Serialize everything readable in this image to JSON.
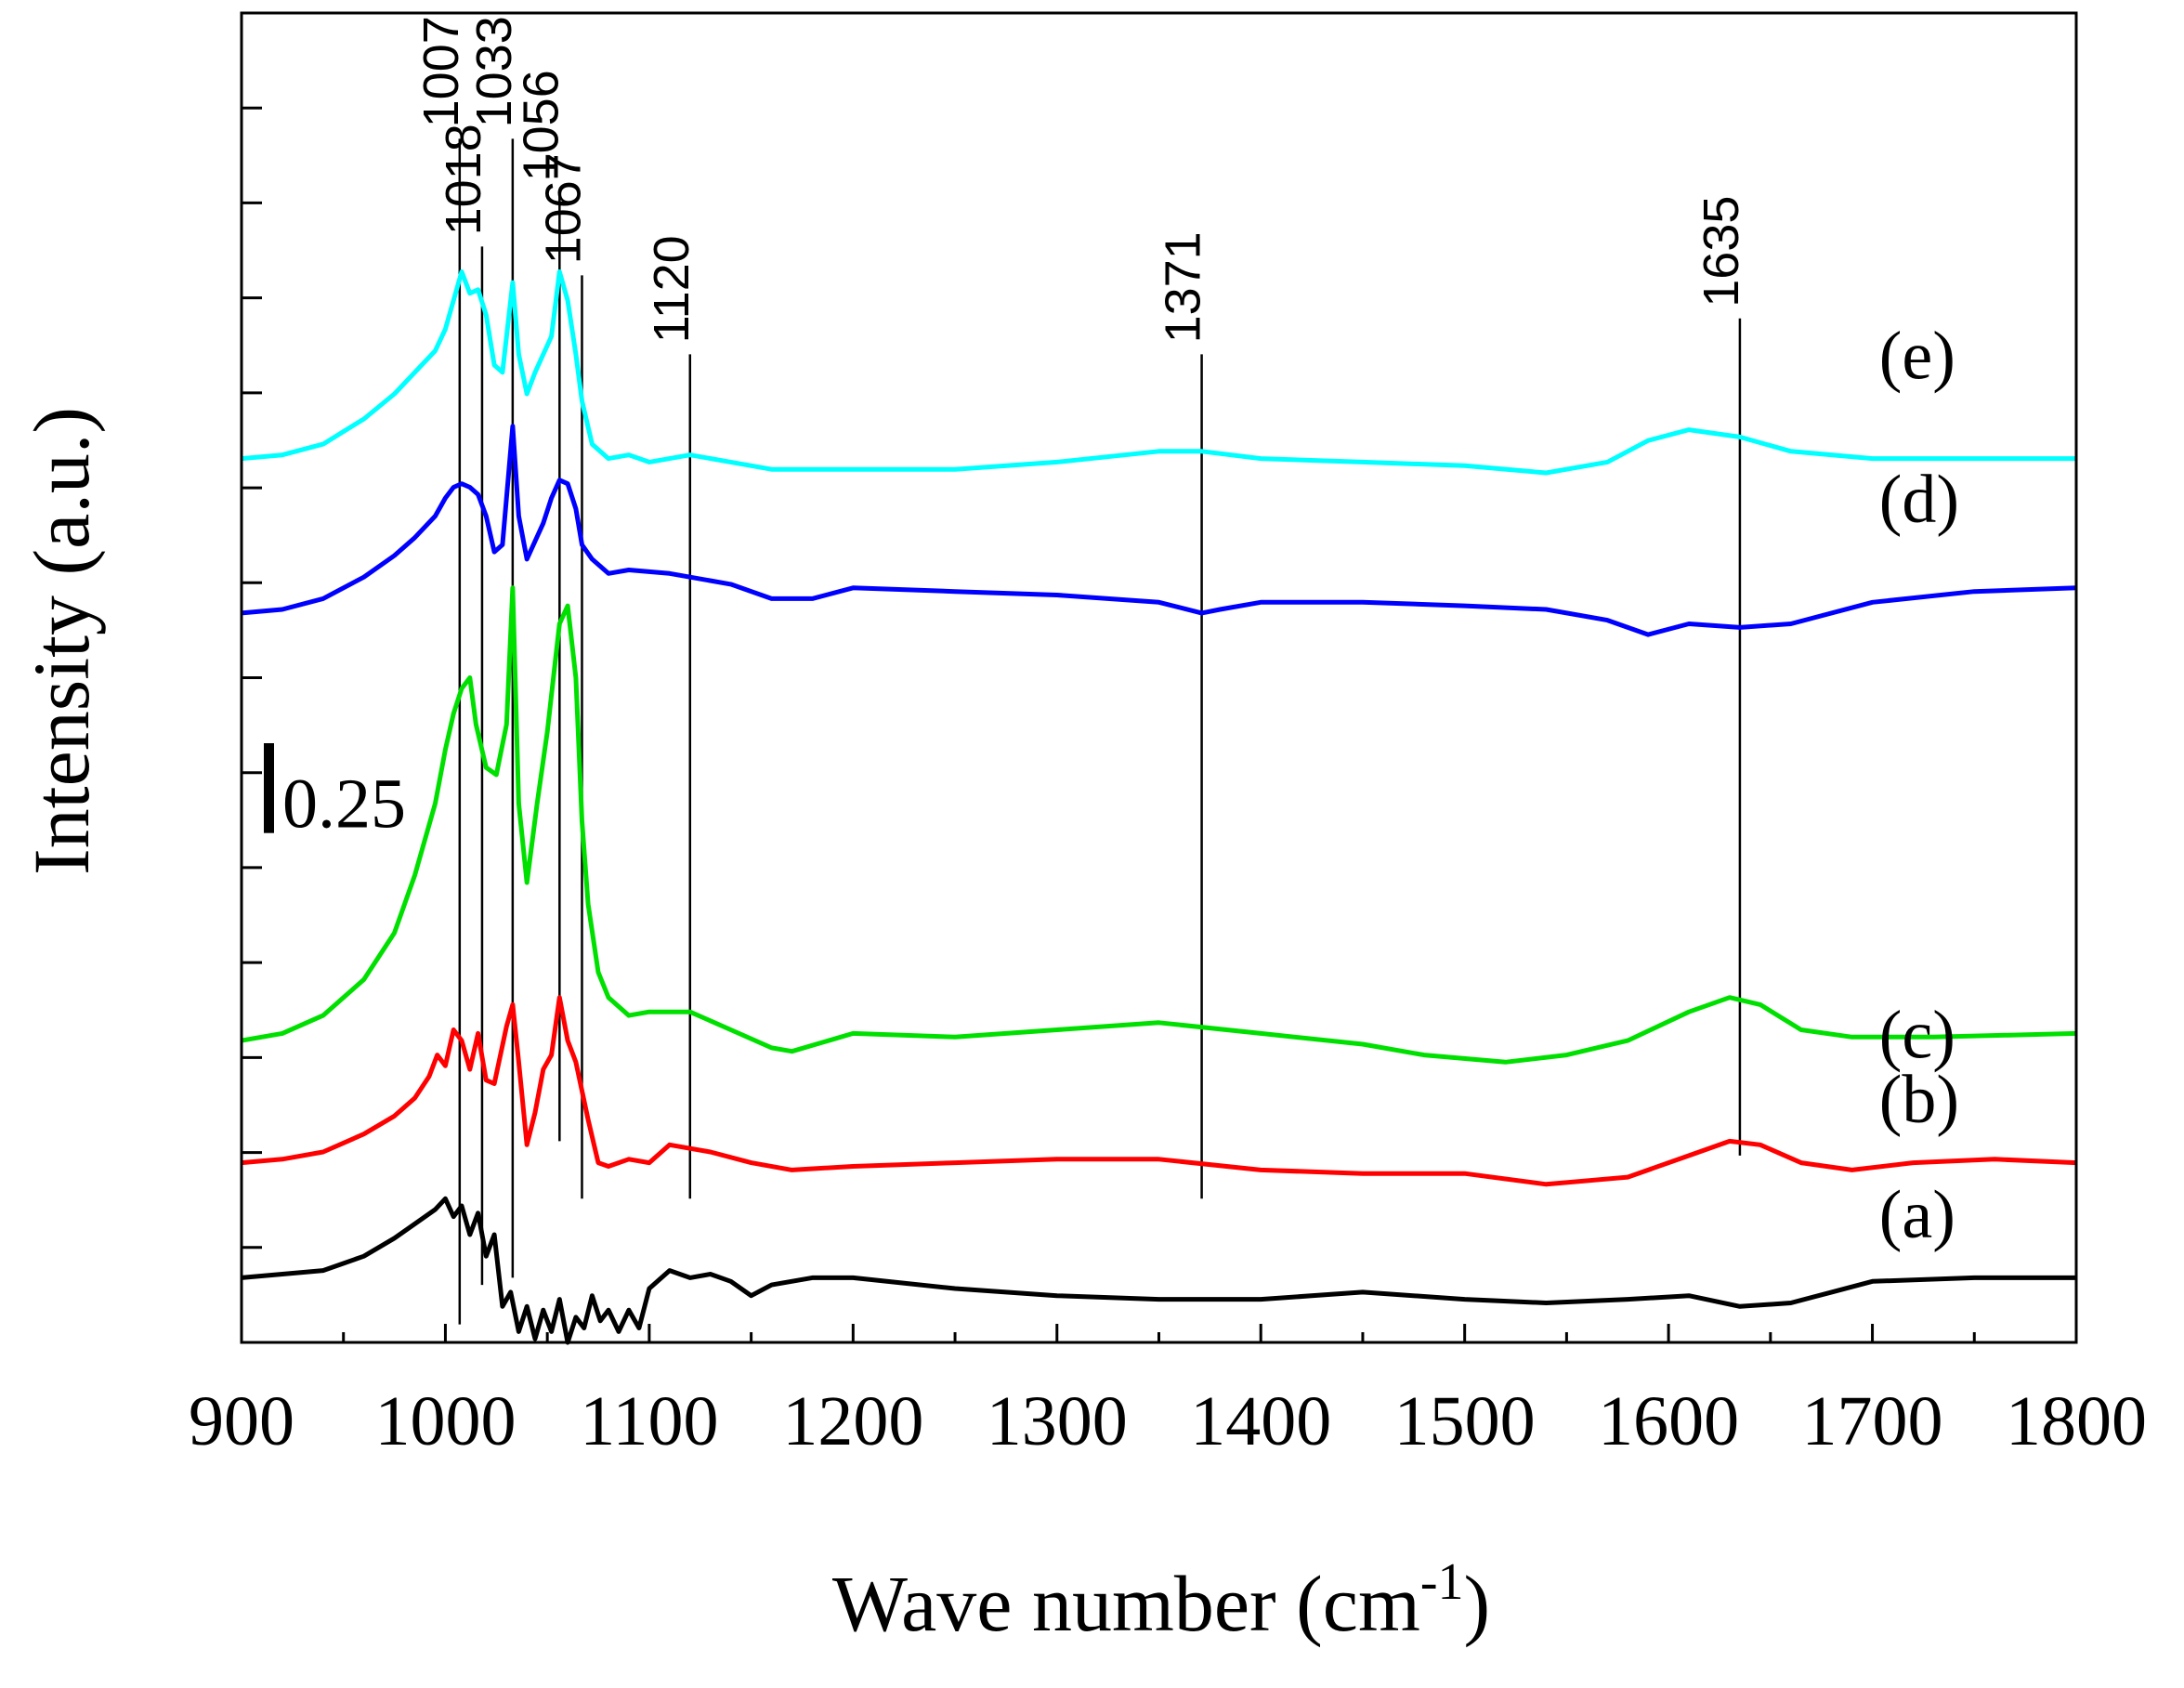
{
  "chart_data": {
    "type": "line",
    "title": "",
    "xlabel_main": "Wave number (cm",
    "xlabel_sup": "-1",
    "xlabel_close": ")",
    "ylabel": "Intensity (a.u.)",
    "xlim": [
      900,
      1800
    ],
    "ylim": [
      0,
      3.7
    ],
    "x_ticks": [
      900,
      1000,
      1100,
      1200,
      1300,
      1400,
      1500,
      1600,
      1700,
      1800
    ],
    "y_tick_count": 14,
    "scale_bar_label": "0.25",
    "scale_bar_value": 0.25,
    "peak_markers": [
      {
        "x": 1007,
        "label": "1007",
        "ybottom": 0.05,
        "ytop": 3.35
      },
      {
        "x": 1018,
        "label": "1018",
        "ybottom": 0.16,
        "ytop": 3.05
      },
      {
        "x": 1033,
        "label": "1033",
        "ybottom": 0.18,
        "ytop": 3.35
      },
      {
        "x": 1056,
        "label": "1056",
        "ybottom": 0.56,
        "ytop": 3.2
      },
      {
        "x": 1067,
        "label": "1067",
        "ybottom": 0.4,
        "ytop": 2.97
      },
      {
        "x": 1120,
        "label": "1120",
        "ybottom": 0.4,
        "ytop": 2.75
      },
      {
        "x": 1371,
        "label": "1371",
        "ybottom": 0.4,
        "ytop": 2.75
      },
      {
        "x": 1635,
        "label": "1635",
        "ybottom": 0.52,
        "ytop": 2.85
      }
    ],
    "series": [
      {
        "name": "(a)",
        "color": "#000000",
        "label_at": [
          1660,
          0.36
        ],
        "points": [
          [
            900,
            0.18
          ],
          [
            920,
            0.19
          ],
          [
            940,
            0.2
          ],
          [
            960,
            0.24
          ],
          [
            975,
            0.29
          ],
          [
            985,
            0.33
          ],
          [
            995,
            0.37
          ],
          [
            1000,
            0.4
          ],
          [
            1004,
            0.35
          ],
          [
            1008,
            0.38
          ],
          [
            1012,
            0.3
          ],
          [
            1016,
            0.36
          ],
          [
            1020,
            0.24
          ],
          [
            1024,
            0.3
          ],
          [
            1028,
            0.1
          ],
          [
            1032,
            0.14
          ],
          [
            1036,
            0.03
          ],
          [
            1040,
            0.1
          ],
          [
            1044,
            0.01
          ],
          [
            1048,
            0.09
          ],
          [
            1052,
            0.03
          ],
          [
            1056,
            0.12
          ],
          [
            1060,
            0.0
          ],
          [
            1064,
            0.07
          ],
          [
            1068,
            0.04
          ],
          [
            1072,
            0.13
          ],
          [
            1076,
            0.06
          ],
          [
            1080,
            0.09
          ],
          [
            1085,
            0.03
          ],
          [
            1090,
            0.09
          ],
          [
            1095,
            0.04
          ],
          [
            1100,
            0.15
          ],
          [
            1110,
            0.2
          ],
          [
            1120,
            0.18
          ],
          [
            1130,
            0.19
          ],
          [
            1140,
            0.17
          ],
          [
            1150,
            0.13
          ],
          [
            1160,
            0.16
          ],
          [
            1180,
            0.18
          ],
          [
            1200,
            0.18
          ],
          [
            1250,
            0.15
          ],
          [
            1300,
            0.13
          ],
          [
            1350,
            0.12
          ],
          [
            1400,
            0.12
          ],
          [
            1450,
            0.14
          ],
          [
            1500,
            0.12
          ],
          [
            1540,
            0.11
          ],
          [
            1580,
            0.12
          ],
          [
            1610,
            0.13
          ],
          [
            1635,
            0.1
          ],
          [
            1660,
            0.11
          ],
          [
            1680,
            0.14
          ],
          [
            1700,
            0.17
          ],
          [
            1750,
            0.18
          ],
          [
            1800,
            0.18
          ]
        ]
      },
      {
        "name": "(b)",
        "color": "#ff0000",
        "label_at": [
          1660,
          0.68
        ],
        "points": [
          [
            900,
            0.5
          ],
          [
            920,
            0.51
          ],
          [
            940,
            0.53
          ],
          [
            960,
            0.58
          ],
          [
            975,
            0.63
          ],
          [
            985,
            0.68
          ],
          [
            992,
            0.74
          ],
          [
            996,
            0.8
          ],
          [
            1000,
            0.77
          ],
          [
            1004,
            0.87
          ],
          [
            1008,
            0.84
          ],
          [
            1012,
            0.76
          ],
          [
            1016,
            0.86
          ],
          [
            1020,
            0.73
          ],
          [
            1024,
            0.72
          ],
          [
            1030,
            0.88
          ],
          [
            1033,
            0.94
          ],
          [
            1036,
            0.78
          ],
          [
            1040,
            0.55
          ],
          [
            1044,
            0.64
          ],
          [
            1048,
            0.76
          ],
          [
            1052,
            0.8
          ],
          [
            1056,
            0.96
          ],
          [
            1060,
            0.84
          ],
          [
            1064,
            0.78
          ],
          [
            1067,
            0.7
          ],
          [
            1070,
            0.62
          ],
          [
            1075,
            0.5
          ],
          [
            1080,
            0.49
          ],
          [
            1090,
            0.51
          ],
          [
            1100,
            0.5
          ],
          [
            1110,
            0.55
          ],
          [
            1120,
            0.54
          ],
          [
            1130,
            0.53
          ],
          [
            1150,
            0.5
          ],
          [
            1170,
            0.48
          ],
          [
            1200,
            0.49
          ],
          [
            1250,
            0.5
          ],
          [
            1300,
            0.51
          ],
          [
            1350,
            0.51
          ],
          [
            1400,
            0.48
          ],
          [
            1450,
            0.47
          ],
          [
            1500,
            0.47
          ],
          [
            1540,
            0.44
          ],
          [
            1580,
            0.46
          ],
          [
            1610,
            0.52
          ],
          [
            1630,
            0.56
          ],
          [
            1645,
            0.55
          ],
          [
            1665,
            0.5
          ],
          [
            1690,
            0.48
          ],
          [
            1720,
            0.5
          ],
          [
            1760,
            0.51
          ],
          [
            1800,
            0.5
          ]
        ]
      },
      {
        "name": "(c)",
        "color": "#00e000",
        "label_at": [
          1660,
          0.86
        ],
        "points": [
          [
            900,
            0.84
          ],
          [
            920,
            0.86
          ],
          [
            940,
            0.91
          ],
          [
            960,
            1.01
          ],
          [
            975,
            1.14
          ],
          [
            985,
            1.3
          ],
          [
            995,
            1.5
          ],
          [
            1000,
            1.65
          ],
          [
            1004,
            1.75
          ],
          [
            1008,
            1.82
          ],
          [
            1012,
            1.85
          ],
          [
            1015,
            1.72
          ],
          [
            1020,
            1.6
          ],
          [
            1025,
            1.58
          ],
          [
            1030,
            1.72
          ],
          [
            1033,
            2.1
          ],
          [
            1036,
            1.5
          ],
          [
            1040,
            1.28
          ],
          [
            1045,
            1.5
          ],
          [
            1050,
            1.7
          ],
          [
            1054,
            1.9
          ],
          [
            1056,
            2.0
          ],
          [
            1060,
            2.05
          ],
          [
            1064,
            1.85
          ],
          [
            1067,
            1.45
          ],
          [
            1070,
            1.22
          ],
          [
            1075,
            1.03
          ],
          [
            1080,
            0.96
          ],
          [
            1090,
            0.91
          ],
          [
            1100,
            0.92
          ],
          [
            1110,
            0.92
          ],
          [
            1120,
            0.92
          ],
          [
            1140,
            0.87
          ],
          [
            1160,
            0.82
          ],
          [
            1170,
            0.81
          ],
          [
            1200,
            0.86
          ],
          [
            1250,
            0.85
          ],
          [
            1300,
            0.87
          ],
          [
            1350,
            0.89
          ],
          [
            1400,
            0.86
          ],
          [
            1450,
            0.83
          ],
          [
            1480,
            0.8
          ],
          [
            1520,
            0.78
          ],
          [
            1550,
            0.8
          ],
          [
            1580,
            0.84
          ],
          [
            1610,
            0.92
          ],
          [
            1630,
            0.96
          ],
          [
            1645,
            0.94
          ],
          [
            1665,
            0.87
          ],
          [
            1690,
            0.85
          ],
          [
            1730,
            0.85
          ],
          [
            1800,
            0.86
          ]
        ]
      },
      {
        "name": "(d)",
        "color": "#0000ff",
        "label_at": [
          1660,
          2.35
        ],
        "points": [
          [
            900,
            2.03
          ],
          [
            920,
            2.04
          ],
          [
            940,
            2.07
          ],
          [
            960,
            2.13
          ],
          [
            975,
            2.19
          ],
          [
            985,
            2.24
          ],
          [
            995,
            2.3
          ],
          [
            1000,
            2.35
          ],
          [
            1004,
            2.38
          ],
          [
            1008,
            2.39
          ],
          [
            1012,
            2.38
          ],
          [
            1016,
            2.36
          ],
          [
            1020,
            2.3
          ],
          [
            1024,
            2.2
          ],
          [
            1028,
            2.22
          ],
          [
            1033,
            2.55
          ],
          [
            1036,
            2.3
          ],
          [
            1040,
            2.18
          ],
          [
            1044,
            2.23
          ],
          [
            1048,
            2.28
          ],
          [
            1052,
            2.35
          ],
          [
            1056,
            2.4
          ],
          [
            1060,
            2.39
          ],
          [
            1064,
            2.32
          ],
          [
            1067,
            2.22
          ],
          [
            1072,
            2.18
          ],
          [
            1080,
            2.14
          ],
          [
            1090,
            2.15
          ],
          [
            1110,
            2.14
          ],
          [
            1120,
            2.13
          ],
          [
            1140,
            2.11
          ],
          [
            1160,
            2.07
          ],
          [
            1180,
            2.07
          ],
          [
            1200,
            2.1
          ],
          [
            1250,
            2.09
          ],
          [
            1300,
            2.08
          ],
          [
            1350,
            2.06
          ],
          [
            1371,
            2.03
          ],
          [
            1380,
            2.04
          ],
          [
            1400,
            2.06
          ],
          [
            1450,
            2.06
          ],
          [
            1500,
            2.05
          ],
          [
            1540,
            2.04
          ],
          [
            1570,
            2.01
          ],
          [
            1590,
            1.97
          ],
          [
            1610,
            2.0
          ],
          [
            1635,
            1.99
          ],
          [
            1660,
            2.0
          ],
          [
            1700,
            2.06
          ],
          [
            1750,
            2.09
          ],
          [
            1800,
            2.1
          ]
        ]
      },
      {
        "name": "(e)",
        "color": "#00ffff",
        "label_at": [
          1660,
          2.75
        ],
        "points": [
          [
            900,
            2.46
          ],
          [
            920,
            2.47
          ],
          [
            940,
            2.5
          ],
          [
            960,
            2.57
          ],
          [
            975,
            2.64
          ],
          [
            985,
            2.7
          ],
          [
            995,
            2.76
          ],
          [
            1000,
            2.82
          ],
          [
            1004,
            2.9
          ],
          [
            1008,
            2.98
          ],
          [
            1012,
            2.92
          ],
          [
            1016,
            2.93
          ],
          [
            1020,
            2.86
          ],
          [
            1024,
            2.72
          ],
          [
            1028,
            2.7
          ],
          [
            1033,
            2.95
          ],
          [
            1036,
            2.75
          ],
          [
            1040,
            2.64
          ],
          [
            1044,
            2.7
          ],
          [
            1048,
            2.75
          ],
          [
            1052,
            2.8
          ],
          [
            1056,
            2.98
          ],
          [
            1060,
            2.9
          ],
          [
            1064,
            2.75
          ],
          [
            1067,
            2.62
          ],
          [
            1072,
            2.5
          ],
          [
            1080,
            2.46
          ],
          [
            1090,
            2.47
          ],
          [
            1100,
            2.45
          ],
          [
            1120,
            2.47
          ],
          [
            1140,
            2.45
          ],
          [
            1160,
            2.43
          ],
          [
            1180,
            2.43
          ],
          [
            1200,
            2.43
          ],
          [
            1250,
            2.43
          ],
          [
            1300,
            2.45
          ],
          [
            1350,
            2.48
          ],
          [
            1371,
            2.48
          ],
          [
            1400,
            2.46
          ],
          [
            1450,
            2.45
          ],
          [
            1500,
            2.44
          ],
          [
            1540,
            2.42
          ],
          [
            1570,
            2.45
          ],
          [
            1590,
            2.51
          ],
          [
            1610,
            2.54
          ],
          [
            1635,
            2.52
          ],
          [
            1660,
            2.48
          ],
          [
            1700,
            2.46
          ],
          [
            1750,
            2.46
          ],
          [
            1800,
            2.46
          ]
        ]
      }
    ]
  }
}
